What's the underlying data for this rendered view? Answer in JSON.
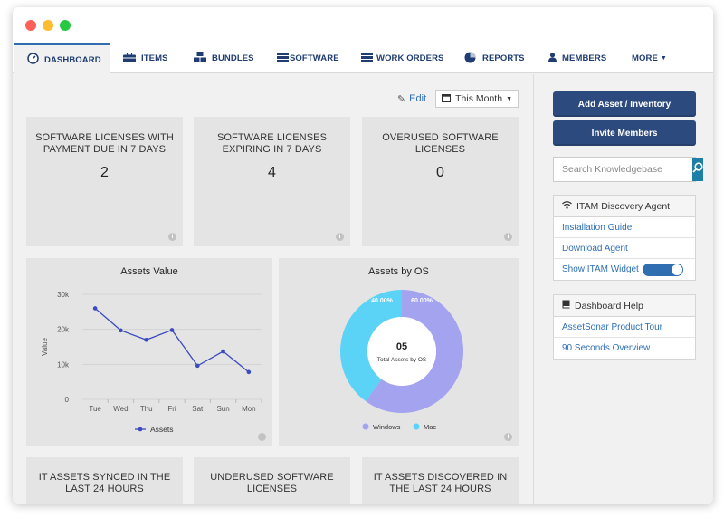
{
  "nav": {
    "tabs": [
      {
        "label": "DASHBOARD"
      },
      {
        "label": "ITEMS"
      },
      {
        "label": "BUNDLES"
      },
      {
        "label": "SOFTWARE"
      },
      {
        "label": "WORK ORDERS"
      },
      {
        "label": "REPORTS"
      },
      {
        "label": "MEMBERS"
      },
      {
        "label": "MORE"
      }
    ]
  },
  "toolbar": {
    "edit_label": "Edit",
    "period_label": "This Month"
  },
  "cards_top": [
    {
      "title": "SOFTWARE LICENSES WITH PAYMENT DUE IN 7 DAYS",
      "value": "2"
    },
    {
      "title": "SOFTWARE LICENSES EXPIRING IN 7 DAYS",
      "value": "4"
    },
    {
      "title": "OVERUSED SOFTWARE LICENSES",
      "value": "0"
    }
  ],
  "cards_bottom": [
    {
      "title": "IT ASSETS SYNCED IN THE LAST 24 HOURS"
    },
    {
      "title": "UNDERUSED SOFTWARE LICENSES"
    },
    {
      "title": "IT ASSETS DISCOVERED IN THE LAST 24 HOURS"
    }
  ],
  "chart_data": [
    {
      "type": "line",
      "title": "Assets Value",
      "ylabel": "Value",
      "xlabel": "",
      "categories": [
        "Tue",
        "Wed",
        "Thu",
        "Fri",
        "Sat",
        "Sun",
        "Mon"
      ],
      "series": [
        {
          "name": "Assets",
          "values": [
            26000,
            19700,
            17000,
            19800,
            9600,
            13700,
            7800
          ]
        }
      ],
      "ylim": [
        0,
        30000
      ],
      "yticks": [
        {
          "v": 0,
          "label": "0"
        },
        {
          "v": 10000,
          "label": "10k"
        },
        {
          "v": 20000,
          "label": "20k"
        },
        {
          "v": 30000,
          "label": "30k"
        }
      ],
      "grid": true,
      "legend": "bottom",
      "color": "#3b4bbf"
    },
    {
      "type": "pie",
      "title": "Assets by OS",
      "center_value": "05",
      "center_label": "Total Assets by OS",
      "slices": [
        {
          "name": "Windows",
          "value": 60.0,
          "label": "60.00%",
          "color": "#a3a3ef"
        },
        {
          "name": "Mac",
          "value": 40.0,
          "label": "40.00%",
          "color": "#5ad3f6"
        }
      ],
      "legend": "bottom"
    }
  ],
  "sidebar": {
    "add_asset_label": "Add Asset / Inventory",
    "invite_label": "Invite Members",
    "search_placeholder": "Search Knowledgebase",
    "itam": {
      "title": "ITAM Discovery Agent",
      "items": [
        "Installation Guide",
        "Download Agent",
        "Show ITAM Widget"
      ],
      "widget_on": true
    },
    "help": {
      "title": "Dashboard Help",
      "items": [
        "AssetSonar Product Tour",
        "90 Seconds Overview"
      ]
    }
  },
  "colors": {
    "accent": "#2d4a7e",
    "link": "#2f6fb1",
    "search_button": "#1e7fa6"
  }
}
